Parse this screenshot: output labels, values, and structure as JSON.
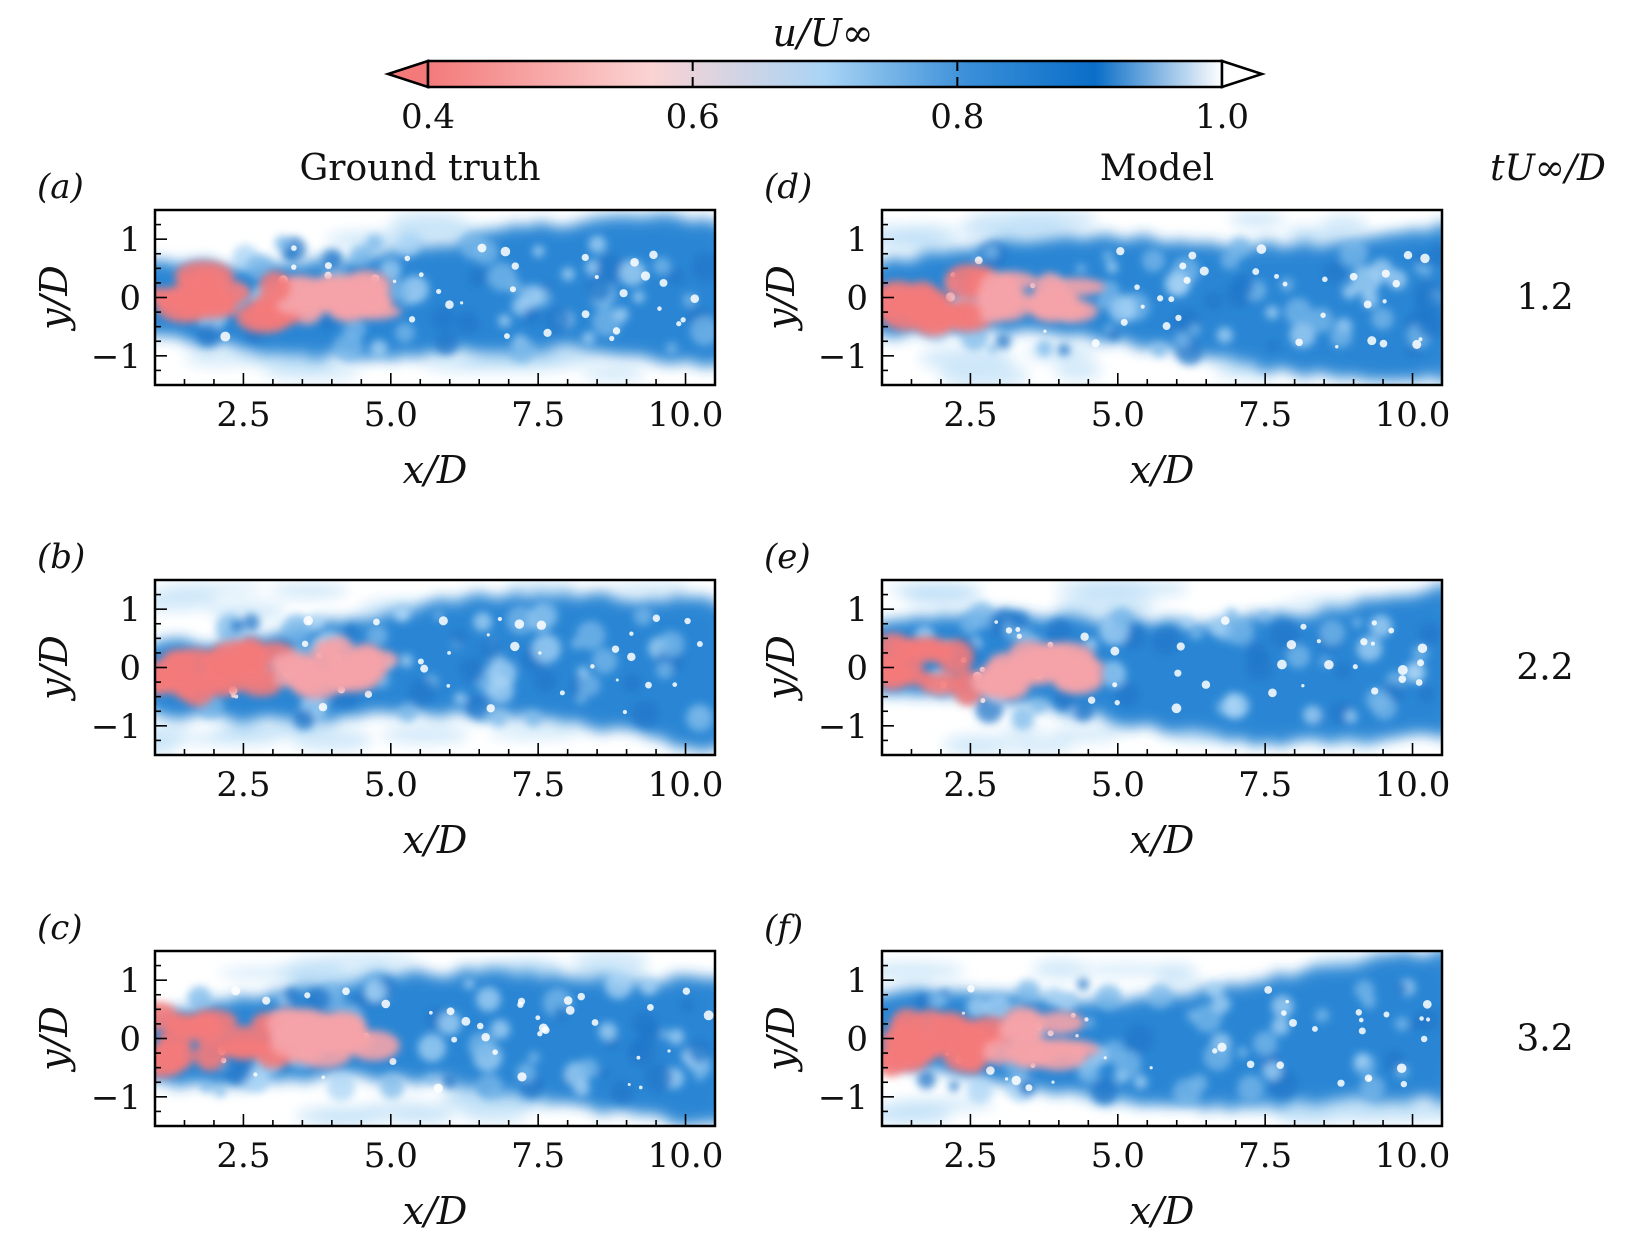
{
  "chart_data": {
    "type": "heatmap",
    "colorbar": {
      "label": "u/U∞",
      "ticks": [
        0.4,
        0.6,
        0.8,
        1.0
      ],
      "tick_labels": [
        "0.4",
        "0.6",
        "0.8",
        "1.0"
      ],
      "range": [
        0.4,
        1.0
      ],
      "extend": "both",
      "colors": [
        "#f47a7a",
        "#fbd3d3",
        "#a9d4f5",
        "#3a8fd8",
        "#0a6ec8",
        "#ffffff"
      ]
    },
    "columns": [
      {
        "title": "Ground truth"
      },
      {
        "title": "Model"
      }
    ],
    "time_header": "tU∞/D",
    "rows": [
      {
        "time": "1.2"
      },
      {
        "time": "2.2"
      },
      {
        "time": "3.2"
      }
    ],
    "panels": [
      {
        "label": "(a)",
        "column": 0,
        "row": 0
      },
      {
        "label": "(b)",
        "column": 0,
        "row": 1
      },
      {
        "label": "(c)",
        "column": 0,
        "row": 2
      },
      {
        "label": "(d)",
        "column": 1,
        "row": 0
      },
      {
        "label": "(e)",
        "column": 1,
        "row": 1
      },
      {
        "label": "(f)",
        "column": 1,
        "row": 2
      }
    ],
    "xaxis": {
      "label": "x/D",
      "range": [
        1.0,
        10.5
      ],
      "ticks": [
        2.5,
        5.0,
        7.5,
        10.0
      ],
      "tick_labels": [
        "2.5",
        "5.0",
        "7.5",
        "10.0"
      ]
    },
    "yaxis": {
      "label": "y/D",
      "range": [
        -1.5,
        1.5
      ],
      "ticks": [
        1,
        0,
        -1
      ],
      "tick_labels": [
        "1",
        "0",
        "−1"
      ]
    }
  }
}
